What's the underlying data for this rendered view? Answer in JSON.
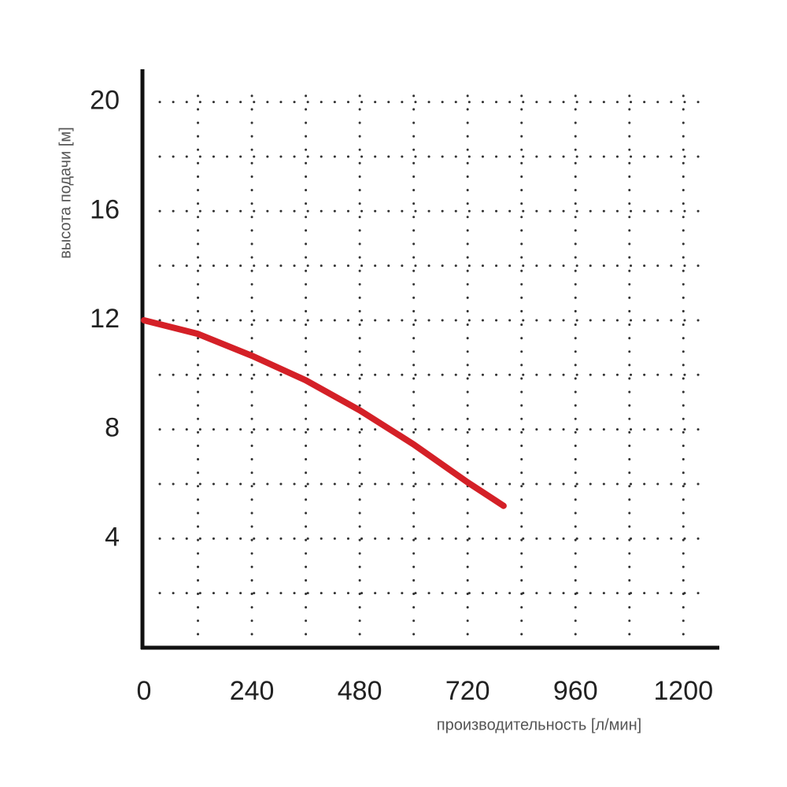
{
  "chart_data": {
    "type": "line",
    "xlabel": "производительность [л/мин]",
    "ylabel": "высота подачи [м]",
    "x": [
      0,
      120,
      240,
      360,
      480,
      600,
      720,
      800
    ],
    "series": [
      {
        "color": "#d42027",
        "values": [
          12,
          11.5,
          10.7,
          9.8,
          8.7,
          7.45,
          6.06,
          5.2
        ]
      }
    ],
    "xlim": [
      0,
      1280
    ],
    "ylim": [
      0,
      21.2
    ],
    "xticks": [
      0,
      240,
      480,
      720,
      960,
      1200
    ],
    "yticks": [
      4,
      8,
      12,
      16,
      20
    ],
    "xgrid": [
      120,
      240,
      360,
      480,
      600,
      720,
      840,
      960,
      1080,
      1200
    ],
    "ygrid": [
      2,
      4,
      6,
      8,
      10,
      12,
      14,
      16,
      18,
      20
    ],
    "grid": true
  }
}
